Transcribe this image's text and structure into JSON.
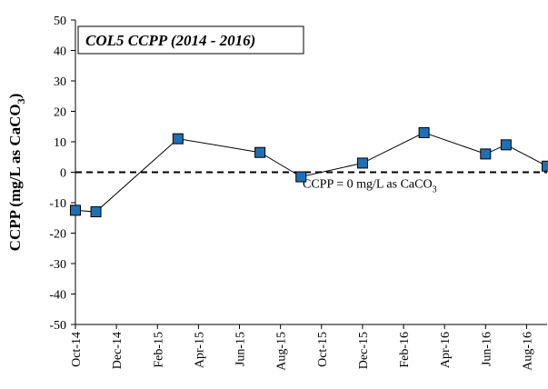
{
  "chart_data": {
    "type": "line",
    "title": "COL5 CCPP (2014 - 2016)",
    "y_label": {
      "text": "CCPP (mg/L as CaCO",
      "subscript": "3",
      "tail": ")"
    },
    "annotation": {
      "text": "CCPP = 0 mg/L as CaCO",
      "subscript": "3",
      "y": 0
    },
    "x": [
      "Oct-14",
      "Nov-14",
      "Mar-15",
      "Jul-15",
      "Sep-15",
      "Dec-15",
      "Mar-16",
      "Jun-16",
      "Jul-16",
      "Sep-16"
    ],
    "series": [
      {
        "name": "CCPP",
        "color": "#1f6fb5",
        "values": [
          -12.5,
          -13,
          11,
          6.5,
          -1.5,
          3,
          13,
          6,
          9,
          2
        ]
      }
    ],
    "xlim": [
      "Oct-14",
      "Sep-16"
    ],
    "xticks": [
      "Oct-14",
      "Dec-14",
      "Feb-15",
      "Apr-15",
      "Jun-15",
      "Aug-15",
      "Oct-15",
      "Dec-15",
      "Feb-16",
      "Apr-16",
      "Jun-16",
      "Aug-16"
    ],
    "ylim": [
      -50,
      50
    ],
    "yticks": [
      -50,
      -40,
      -30,
      -20,
      -10,
      0,
      10,
      20,
      30,
      40,
      50
    ],
    "grid": false
  }
}
